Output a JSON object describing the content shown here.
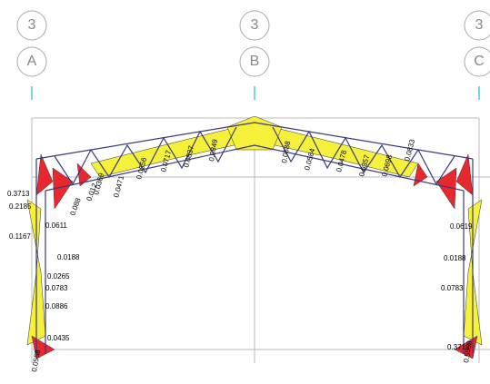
{
  "grid_bubbles": [
    {
      "top": "3",
      "bottom": "A"
    },
    {
      "top": "3",
      "bottom": "B"
    },
    {
      "top": "3",
      "bottom": "C"
    }
  ],
  "force_labels": [
    "0.3713",
    "0.2185",
    "0.1167",
    "0.0611",
    "0.0188",
    "0.0265",
    "0.0783",
    "0.0886",
    "0.0435",
    "0.0558",
    "0.088",
    "0.012",
    "0.0369",
    "0.0471",
    "0.0556",
    "0.0717",
    "0.0837",
    "0.0849",
    "0.0688",
    "0.0584",
    "0.0478",
    "0.0357",
    "0.0698",
    "0.0833",
    "0.0619",
    "0.0188",
    "0.0783",
    "0.3713",
    "0.5558"
  ]
}
